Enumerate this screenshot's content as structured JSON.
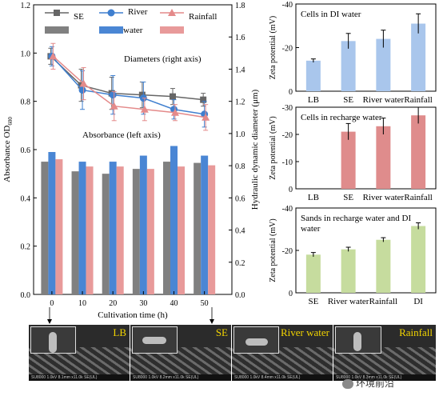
{
  "chart_data": [
    {
      "type": "bar",
      "panel": "main",
      "xlabel": "Cultivation time (h)",
      "ylabel": "Absorbance OD600",
      "ylabel_base": "Absorbance OD",
      "ylabel_sub": "600",
      "y2label": "Hydraulic dynamic diameter (μm)",
      "categories": [
        "0",
        "10",
        "20",
        "30",
        "40",
        "50"
      ],
      "ylim": [
        0.0,
        1.2
      ],
      "yticks": [
        "0.0",
        "0.2",
        "0.4",
        "0.6",
        "0.8",
        "1.0",
        "1.2"
      ],
      "y2lim": [
        0.0,
        1.8
      ],
      "y2ticks": [
        "0.0",
        "0.2",
        "0.4",
        "0.6",
        "0.8",
        "1.0",
        "1.2",
        "1.4",
        "1.6",
        "1.8"
      ],
      "bar_series": [
        {
          "name": "SE",
          "color": "#808080",
          "values": [
            0.55,
            0.51,
            0.5,
            0.52,
            0.55,
            0.545
          ]
        },
        {
          "name": "River water",
          "color": "#4a86d4",
          "values": [
            0.59,
            0.55,
            0.55,
            0.575,
            0.615,
            0.575
          ]
        },
        {
          "name": "Rainfall",
          "color": "#e89a9a",
          "values": [
            0.56,
            0.53,
            0.53,
            0.52,
            0.53,
            0.535
          ]
        }
      ],
      "line_series": [
        {
          "name": "SE",
          "color": "#666666",
          "marker": "square",
          "values": [
            1.48,
            1.3,
            1.25,
            1.24,
            1.23,
            1.21
          ],
          "errors": [
            0.05,
            0.1,
            0.1,
            0.08,
            0.05,
            0.04
          ]
        },
        {
          "name": "River water",
          "color": "#3f7fcf",
          "marker": "circle",
          "values": [
            1.48,
            1.27,
            1.24,
            1.22,
            1.15,
            1.12
          ],
          "errors": [
            0.06,
            0.12,
            0.12,
            0.1,
            0.06,
            0.08
          ]
        },
        {
          "name": "Rainfall",
          "color": "#e48a8a",
          "marker": "triangle",
          "values": [
            1.48,
            1.31,
            1.17,
            1.15,
            1.13,
            1.1
          ],
          "errors": [
            0.08,
            0.1,
            0.09,
            0.07,
            0.05,
            0.08
          ]
        }
      ],
      "annotations": [
        "Diameters (right axis)",
        "Absorbance (left axis)"
      ],
      "legend": {
        "position": "top",
        "entries": [
          "SE",
          "River water",
          "Rainfall"
        ]
      }
    },
    {
      "type": "bar",
      "panel": "top-right",
      "title": "Cells in DI water",
      "ylabel": "Zeta potential (mV)",
      "ylim": [
        0,
        -40
      ],
      "yticks": [
        "0",
        "-20",
        "-40"
      ],
      "categories": [
        "LB",
        "SE",
        "River water",
        "Rainfall"
      ],
      "values": [
        -14,
        -23,
        -24,
        -31
      ],
      "errors": [
        0.8,
        3.5,
        4,
        4.5
      ],
      "color": "#a9c6ec"
    },
    {
      "type": "bar",
      "panel": "middle-right",
      "title": "Cells in recharge water",
      "ylabel": "Zeta potential (mV)",
      "ylim": [
        0,
        -30
      ],
      "yticks": [
        "0",
        "-10",
        "-20",
        "-30"
      ],
      "categories": [
        "LB",
        "SE",
        "River water",
        "Rainfall"
      ],
      "values": [
        0,
        -21,
        -23,
        -27
      ],
      "errors": [
        0,
        3,
        3,
        3
      ],
      "color": "#df8c8c"
    },
    {
      "type": "bar",
      "panel": "bottom-right",
      "title": "Sands in recharge water and DI water",
      "title_lines": [
        "Sands in recharge water and DI",
        "water"
      ],
      "ylabel": "Zeta potential (mV)",
      "ylim": [
        0,
        -40
      ],
      "yticks": [
        "0",
        "-20",
        "-40"
      ],
      "categories": [
        "SE",
        "River water",
        "Rainfall",
        "DI"
      ],
      "values": [
        -18,
        -20.5,
        -25,
        -31.5
      ],
      "errors": [
        1,
        1,
        1,
        1.5
      ],
      "color": "#c6dc9e"
    }
  ],
  "sem_panels": [
    {
      "label": "LB",
      "caption": "SU8000 1.0kV 8.1mm x11.0k SE(UL)"
    },
    {
      "label": "SE",
      "caption": "SU8000 1.0kV 8.2mm x11.0k SE(UL)"
    },
    {
      "label": "River water",
      "caption": "SU8000 1.0kV 8.4mm x11.0k SE(UL)"
    },
    {
      "label": "Rainfall",
      "caption": "SU8000 1.0kV 8.3mm x11.0k SE(UL)"
    }
  ],
  "watermark": "环境前沿"
}
